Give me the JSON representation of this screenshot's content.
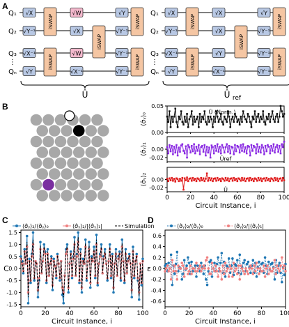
{
  "panel_labels": {
    "a": "A",
    "b": "B",
    "c": "C",
    "d": "D"
  },
  "colors": {
    "gate_blue": "#b8c8e4",
    "gate_orange": "#f5c6a3",
    "gate_pink": "#f3b8cc",
    "ref_red_text": "#e0294f",
    "atom_grey": "#a8a8a8",
    "atom_black": "#000000",
    "atom_purple": "#7a2fa0",
    "trace0": "#111111",
    "trace1": "#8a2be2",
    "trace2": "#e02020",
    "series_blue": "#1f77b4",
    "series_pink": "#f08080"
  },
  "panel_a": {
    "qubits": [
      "Q₁",
      "Q₂",
      "Q₃",
      "Qₙ"
    ],
    "left_gates": {
      "col1": [
        "√X",
        "√Y⁻¹",
        "√X⁻¹",
        "√Y"
      ],
      "col2": [
        "√W",
        "√X",
        "√W",
        "√X⁻¹"
      ],
      "col3": [
        "√Y",
        "√Y⁻¹",
        "√Y⁻¹",
        "√Y⁻¹"
      ]
    },
    "right_gates": {
      "col1": [
        "√X",
        "√Y⁻¹",
        "√X⁻¹",
        "√Y"
      ],
      "col2": [
        "√X",
        "√X",
        "√Y",
        "√X⁻¹"
      ],
      "col3": [
        "√Y",
        "√Y⁻¹",
        "√Y⁻¹",
        "√Y⁻¹"
      ]
    },
    "iswap_label": "iSWAP",
    "dots": "⋮",
    "u_label": "Û",
    "uref_label": "Û",
    "uref_sub": "ref"
  },
  "panel_b": {
    "y_labels": [
      "⟨σ̂ᵧ⟩₀",
      "⟨σ̂ᵧ⟩₁",
      "⟨σ̂ᵧ⟩₂"
    ],
    "annotations": [
      "Û (Norm.)",
      "Ûref",
      "Û"
    ],
    "xlabel": "Circuit Instance, i",
    "xticks": [
      "0",
      "20",
      "40",
      "60",
      "80",
      "100"
    ]
  },
  "panel_c": {
    "ylabel": "C",
    "xlabel": "Circuit Instance, i",
    "legend": [
      "⟨σ̂ᵧ⟩₂/⟨σ̂ᵧ⟩₀",
      "⟨σ̂ᵧ⟩₂/|⟨σ̂ᵧ⟩₁|",
      "Simulation"
    ],
    "xticks": [
      "0",
      "20",
      "40",
      "60",
      "80",
      "100"
    ],
    "yticks": [
      "-1.5",
      "-1.0",
      "-0.5",
      "0.0",
      "0.5",
      "1.0",
      "1.5"
    ]
  },
  "panel_d": {
    "ylabel": "ε",
    "xlabel": "Circuit Instance, i",
    "legend": [
      "⟨σ̂ᵧ⟩₂/⟨σ̂ᵧ⟩₀",
      "⟨σ̂ᵧ⟩₂/|⟨σ̂ᵧ⟩₁|"
    ],
    "xticks": [
      "0",
      "20",
      "40",
      "60",
      "80",
      "100"
    ],
    "yticks": [
      "-0.6",
      "-0.4",
      "-0.2",
      "0.0",
      "0.2",
      "0.4",
      "0.6"
    ]
  },
  "chart_data": [
    {
      "type": "line",
      "panel": "B-top",
      "ylabel": "⟨σ̂ᵧ⟩₀",
      "xlim": [
        0,
        100
      ],
      "ylim": [
        0,
        0.05
      ],
      "yticks": [
        0.0,
        0.05
      ],
      "series": [
        {
          "name": "Û (Norm.)",
          "values": [
            0.03,
            0.02,
            0.04,
            0.01,
            0.03,
            0.02,
            0.03,
            0.045,
            0.02,
            0.01,
            0.03,
            0.025,
            0.04,
            0.02,
            0.015,
            0.03,
            0.02,
            0.035,
            0.01,
            0.025,
            0.03,
            0.04,
            0.015,
            0.03,
            0.02,
            0.025,
            0.03,
            0.01,
            0.035,
            0.02,
            0.03,
            0.025,
            0.04,
            0.02,
            0.015,
            0.03,
            0.02,
            0.03,
            0.025,
            0.01,
            0.03,
            0.02,
            0.04,
            0.03,
            0.02,
            0.025,
            0.035,
            0.02,
            0.015,
            0.03,
            0.025,
            0.02,
            0.04,
            0.03,
            0.01,
            0.025,
            0.03,
            0.02,
            0.035,
            0.03,
            0.02,
            0.025,
            0.015,
            0.03,
            0.02,
            0.04,
            0.03,
            0.025,
            0.02,
            0.035,
            0.03,
            0.02,
            0.01,
            0.03,
            0.025,
            0.04,
            0.02,
            0.03,
            0.035,
            0.02,
            0.03,
            0.025,
            0.04,
            0.02,
            0.015,
            0.03,
            0.025,
            0.035,
            0.02,
            0.03,
            0.04,
            0.025,
            0.02,
            0.03,
            0.035,
            0.02,
            0.03,
            0.05,
            0.04,
            0.03,
            0.035
          ]
        }
      ]
    },
    {
      "type": "line",
      "panel": "B-middle",
      "ylabel": "⟨σ̂ᵧ⟩₁",
      "xlim": [
        0,
        100
      ],
      "ylim": [
        -0.03,
        0.03
      ],
      "yticks": [
        -0.02,
        0.0
      ],
      "series": [
        {
          "name": "Ûref",
          "values": [
            0.005,
            -0.01,
            0.01,
            -0.005,
            0.008,
            -0.012,
            0.006,
            -0.008,
            0.01,
            -0.015,
            0.004,
            -0.006,
            0.009,
            0.012,
            -0.004,
            -0.01,
            0.007,
            -0.02,
            0.01,
            0.005,
            -0.008,
            0.008,
            -0.005,
            0.012,
            -0.01,
            0.006,
            -0.004,
            0.01,
            -0.012,
            0.005,
            0.008,
            -0.006,
            0.01,
            -0.015,
            0.006,
            -0.008,
            0.004,
            -0.02,
            0.009,
            0.005,
            -0.01,
            0.008,
            -0.004,
            0.012,
            -0.006,
            0.006,
            -0.01,
            0.01,
            0.004,
            -0.008,
            0.005,
            0.012,
            -0.006,
            0.008,
            -0.01,
            0.006,
            0.004,
            -0.012,
            0.01,
            -0.005,
            0.008,
            0.006,
            -0.008,
            0.01,
            -0.004,
            0.012,
            -0.006,
            0.005,
            -0.01,
            0.008,
            0.006,
            -0.015,
            0.01,
            -0.004,
            0.008,
            0.005,
            -0.01,
            0.012,
            -0.006,
            0.006,
            -0.008,
            0.01,
            0.004,
            -0.012,
            0.008,
            -0.005,
            0.01,
            0.006,
            -0.01,
            0.008,
            -0.004,
            0.012,
            -0.008,
            0.005,
            0.01,
            -0.006,
            0.008,
            -0.01,
            0.012,
            0.005,
            0.018
          ]
        }
      ]
    },
    {
      "type": "line",
      "panel": "B-bottom",
      "ylabel": "⟨σ̂ᵧ⟩₂",
      "xlim": [
        0,
        100
      ],
      "ylim": [
        -0.03,
        0.03
      ],
      "yticks": [
        -0.02,
        0.0
      ],
      "series": [
        {
          "name": "Û",
          "values": [
            0.002,
            -0.004,
            0.003,
            -0.002,
            0.004,
            -0.003,
            0.002,
            -0.005,
            0.003,
            0.001,
            -0.004,
            0.002,
            -0.003,
            0.004,
            -0.025,
            0.003,
            -0.002,
            0.005,
            -0.004,
            0.002,
            0.003,
            -0.003,
            0.004,
            -0.002,
            0.002,
            -0.004,
            0.003,
            0.001,
            -0.003,
            0.004,
            -0.002,
            0.003,
            -0.004,
            0.002,
            0.015,
            -0.003,
            0.004,
            -0.002,
            0.003,
            -0.004,
            0.002,
            0.003,
            -0.003,
            0.004,
            -0.002,
            0.002,
            -0.004,
            0.003,
            0.001,
            -0.003,
            0.004,
            -0.002,
            0.003,
            -0.004,
            0.002,
            0.003,
            -0.003,
            0.004,
            -0.002,
            0.002,
            -0.004,
            0.003,
            0.001,
            -0.003,
            0.004,
            -0.002,
            0.003,
            -0.004,
            0.002,
            0.003,
            -0.003,
            0.004,
            -0.002,
            0.002,
            -0.004,
            0.003,
            0.001,
            -0.003,
            0.004,
            -0.002,
            0.003,
            -0.004,
            0.002,
            0.003,
            -0.003,
            0.004,
            -0.002,
            0.002,
            -0.004,
            0.003,
            0.001,
            -0.003,
            0.004,
            -0.002,
            0.003,
            -0.004,
            0.002,
            0.003,
            -0.003,
            0.004,
            -0.002
          ]
        }
      ]
    },
    {
      "type": "line",
      "panel": "C",
      "title": "",
      "xlabel": "Circuit Instance, i",
      "ylabel": "C",
      "xlim": [
        0,
        100
      ],
      "ylim": [
        -1.6,
        1.6
      ],
      "series": [
        {
          "name": "⟨σ̂ᵧ⟩₂/⟨σ̂ᵧ⟩₀",
          "values": [
            0.5,
            0.3,
            -0.2,
            0.8,
            0.2,
            1.35,
            -1.45,
            0.4,
            -0.6,
            0.6,
            1.5,
            -0.5,
            0.3,
            0.2,
            -1.2,
            -0.5,
            1.1,
            -0.2,
            0.3,
            1.0,
            0.7,
            -0.6,
            0.8,
            -0.3,
            0.2,
            0.5,
            -0.9,
            0.4,
            0.1,
            -0.4,
            0.6,
            0.2,
            -0.5,
            0.3,
            -1.1,
            -1.45,
            -0.3,
            0.8,
            1.0,
            -1.0,
            0.2,
            0.7,
            -0.4,
            0.5,
            1.3,
            -0.3,
            0.6,
            1.5,
            -0.6,
            0.8,
            -1.0,
            0.4,
            0.2,
            1.2,
            -0.5,
            0.3,
            1.1,
            -0.8,
            0.5,
            0.3,
            0.9,
            -0.4,
            1.4,
            -0.7,
            0.2,
            0.6,
            1.0,
            -0.2,
            0.5,
            0.8,
            0.2,
            -0.5,
            0.3,
            1.0,
            -0.4,
            0.6,
            -1.0,
            0.2,
            0.8,
            -0.3,
            0.5,
            0.7,
            -0.5,
            1.2,
            0.3,
            -0.6,
            0.8,
            -0.2,
            0.4,
            0.6,
            0.2,
            -1.2,
            0.9,
            -0.4,
            0.3,
            0.6,
            -0.5,
            -1.3,
            0.2,
            -0.7,
            0.4
          ]
        },
        {
          "name": "⟨σ̂ᵧ⟩₂/|⟨σ̂ᵧ⟩₁|",
          "values": [
            0.4,
            0.2,
            -0.1,
            0.7,
            0.2,
            0.9,
            -1.0,
            0.3,
            -0.5,
            0.5,
            1.0,
            -0.4,
            0.3,
            0.2,
            -0.9,
            -0.4,
            0.8,
            -0.2,
            0.3,
            0.8,
            0.6,
            -0.5,
            0.6,
            -0.3,
            0.2,
            0.4,
            -0.7,
            0.3,
            0.1,
            -0.3,
            0.5,
            0.2,
            -0.4,
            0.3,
            -0.8,
            -1.0,
            -0.3,
            0.6,
            0.8,
            -0.8,
            0.2,
            0.6,
            -0.3,
            0.4,
            1.0,
            -0.3,
            0.5,
            1.1,
            -0.5,
            0.6,
            -0.8,
            0.3,
            0.2,
            0.9,
            -0.4,
            0.3,
            0.8,
            -0.6,
            0.4,
            0.3,
            0.7,
            -0.3,
            1.0,
            -0.6,
            0.2,
            0.5,
            0.8,
            -0.2,
            0.4,
            0.6,
            0.2,
            -0.4,
            0.3,
            0.8,
            -0.3,
            0.5,
            -0.8,
            0.2,
            0.6,
            -0.3,
            0.4,
            0.6,
            -0.4,
            0.9,
            0.3,
            -0.5,
            0.6,
            -0.2,
            0.3,
            0.5,
            0.2,
            -0.9,
            0.7,
            -0.3,
            0.3,
            0.5,
            -0.4,
            -1.0,
            0.2,
            -0.6,
            0.3
          ]
        },
        {
          "name": "Simulation",
          "values": [
            0.45,
            0.25,
            -0.15,
            0.75,
            0.2,
            1.1,
            -1.2,
            0.35,
            -0.55,
            0.55,
            1.2,
            -0.45,
            0.3,
            0.2,
            -1.0,
            -0.45,
            0.95,
            -0.2,
            0.3,
            0.9,
            0.65,
            -0.55,
            0.7,
            -0.3,
            0.2,
            0.45,
            -0.8,
            0.35,
            0.1,
            -0.35,
            0.55,
            0.2,
            -0.45,
            0.3,
            -0.95,
            -1.2,
            -0.3,
            0.7,
            0.9,
            -0.9,
            0.2,
            0.65,
            -0.35,
            0.45,
            1.15,
            -0.3,
            0.55,
            1.3,
            -0.55,
            0.7,
            -0.9,
            0.35,
            0.2,
            1.05,
            -0.45,
            0.3,
            0.95,
            -0.7,
            0.45,
            0.3,
            0.8,
            -0.35,
            1.2,
            -0.65,
            0.2,
            0.55,
            0.9,
            -0.2,
            0.45,
            0.7,
            0.2,
            -0.45,
            0.3,
            0.9,
            -0.35,
            0.55,
            -0.9,
            0.2,
            0.7,
            -0.3,
            0.45,
            0.65,
            -0.45,
            1.05,
            0.3,
            -0.55,
            0.7,
            -0.2,
            0.35,
            0.55,
            0.2,
            -1.05,
            0.8,
            -0.35,
            0.3,
            0.55,
            -0.45,
            -1.15,
            0.2,
            -0.65,
            0.35
          ]
        }
      ]
    },
    {
      "type": "scatter",
      "panel": "D",
      "title": "",
      "xlabel": "Circuit Instance, i",
      "ylabel": "ε",
      "xlim": [
        0,
        100
      ],
      "ylim": [
        -0.7,
        0.7
      ],
      "series": [
        {
          "name": "⟨σ̂ᵧ⟩₂/⟨σ̂ᵧ⟩₀",
          "values": [
            0.05,
            0.08,
            -0.05,
            0.1,
            0.0,
            0.25,
            -0.3,
            0.05,
            -0.1,
            0.08,
            0.3,
            -0.05,
            0.02,
            0.0,
            -0.2,
            -0.1,
            0.15,
            -0.02,
            0.05,
            0.2,
            0.1,
            -0.1,
            0.12,
            -0.05,
            0.0,
            0.05,
            -0.15,
            0.05,
            0.0,
            -0.05,
            0.1,
            0.02,
            -0.1,
            0.05,
            -0.2,
            -0.3,
            -0.05,
            0.12,
            0.15,
            -0.15,
            0.0,
            0.1,
            -0.05,
            0.08,
            0.2,
            -0.05,
            0.1,
            0.28,
            -0.08,
            0.12,
            -0.15,
            0.05,
            0.02,
            0.18,
            -0.08,
            0.05,
            0.18,
            -0.12,
            0.08,
            0.05,
            0.15,
            -0.08,
            0.25,
            -0.1,
            0.02,
            0.1,
            0.15,
            -0.05,
            0.08,
            0.12,
            0.02,
            -0.08,
            0.05,
            0.15,
            -0.08,
            0.1,
            -0.15,
            0.02,
            0.12,
            -0.05,
            0.08,
            0.1,
            -0.08,
            0.2,
            0.05,
            -0.1,
            0.12,
            -0.02,
            0.08,
            0.1,
            0.02,
            -0.2,
            0.15,
            -0.08,
            0.05,
            0.1,
            -0.08,
            -0.25,
            0.02,
            -0.12,
            0.08
          ]
        },
        {
          "name": "⟨σ̂ᵧ⟩₂/|⟨σ̂ᵧ⟩₁|",
          "values": [
            -0.05,
            0.0,
            0.05,
            -0.05,
            0.0,
            -0.2,
            0.15,
            -0.05,
            0.05,
            -0.05,
            -0.2,
            0.05,
            0.0,
            0.0,
            0.1,
            0.05,
            -0.15,
            0.0,
            0.0,
            -0.1,
            -0.05,
            0.05,
            -0.1,
            0.0,
            0.0,
            -0.05,
            0.1,
            -0.05,
            0.0,
            0.05,
            -0.05,
            0.0,
            0.05,
            0.0,
            0.15,
            0.2,
            0.0,
            -0.1,
            -0.1,
            0.1,
            0.0,
            -0.05,
            0.05,
            -0.05,
            -0.15,
            0.0,
            -0.05,
            -0.2,
            0.05,
            -0.1,
            0.1,
            -0.05,
            0.0,
            -0.15,
            0.05,
            0.0,
            -0.15,
            0.1,
            -0.05,
            0.0,
            -0.1,
            0.05,
            -0.2,
            0.05,
            0.0,
            -0.05,
            -0.1,
            0.0,
            -0.05,
            -0.1,
            0.0,
            0.05,
            0.0,
            -0.1,
            0.05,
            -0.05,
            0.1,
            0.0,
            -0.1,
            0.0,
            -0.05,
            -0.05,
            0.05,
            -0.15,
            0.0,
            0.05,
            -0.1,
            0.0,
            -0.05,
            -0.05,
            0.0,
            0.15,
            -0.1,
            0.05,
            0.0,
            -0.05,
            0.05,
            0.2,
            0.0,
            0.05,
            -0.05
          ]
        }
      ]
    }
  ]
}
